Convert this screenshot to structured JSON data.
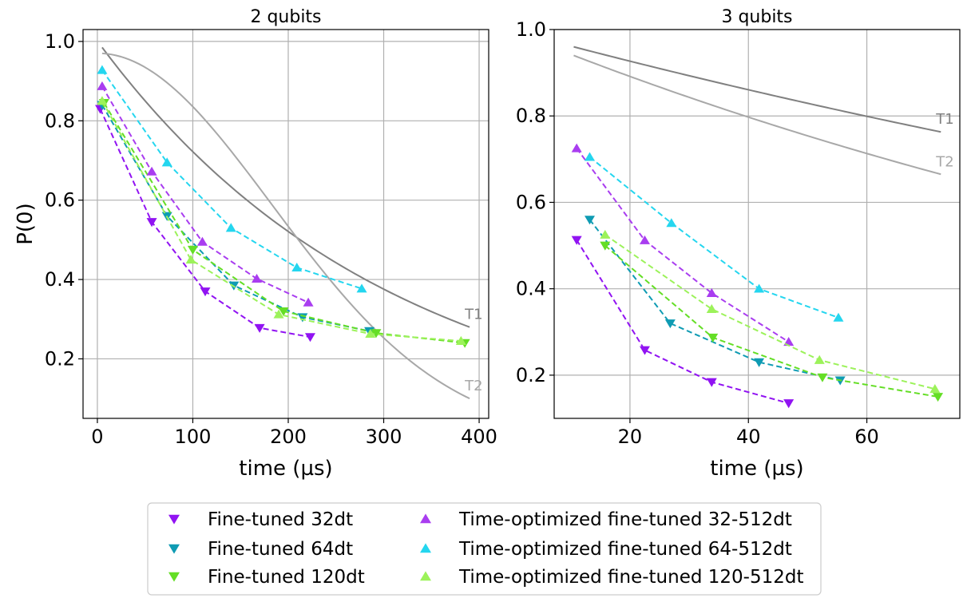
{
  "chart_data": [
    {
      "type": "line",
      "title": "2 qubits",
      "xlabel": "time (µs)",
      "ylabel": "P(0)",
      "xlim": [
        -15,
        410
      ],
      "ylim": [
        0.05,
        1.03
      ],
      "xticks": [
        0,
        100,
        200,
        300,
        400
      ],
      "xtick_labels": [
        "0",
        "100",
        "200",
        "300",
        "400"
      ],
      "yticks": [
        0.2,
        0.4,
        0.6,
        0.8,
        1.0
      ],
      "ytick_labels": [
        "0.2",
        "0.4",
        "0.6",
        "0.8",
        "1.0"
      ],
      "grid": true,
      "reference_curves": [
        {
          "name": "T1",
          "label": "T1",
          "color": "#808080",
          "x0": 5,
          "y0": 0.985,
          "x1": 390,
          "y1": 0.28,
          "shape": "exp"
        },
        {
          "name": "T2",
          "label": "T2",
          "color": "#a8a8a8",
          "x0": 5,
          "y0": 0.97,
          "x1": 390,
          "y1": 0.1,
          "shape": "gauss"
        }
      ],
      "series": [
        {
          "name": "Fine-tuned 32dt",
          "marker": "down",
          "x": [
            3,
            57,
            113,
            170,
            223
          ],
          "y": [
            0.83,
            0.545,
            0.37,
            0.278,
            0.255
          ]
        },
        {
          "name": "Fine-tuned 64dt",
          "marker": "down",
          "x": [
            5,
            73,
            143,
            215,
            285
          ],
          "y": [
            0.84,
            0.56,
            0.385,
            0.305,
            0.27
          ]
        },
        {
          "name": "Fine-tuned 120dt",
          "marker": "down",
          "x": [
            7,
            100,
            195,
            292,
            385
          ],
          "y": [
            0.845,
            0.475,
            0.32,
            0.265,
            0.24
          ]
        },
        {
          "name": "Time-optimized fine-tuned 32-512dt",
          "marker": "up",
          "x": [
            5,
            57,
            110,
            167,
            221
          ],
          "y": [
            0.887,
            0.672,
            0.495,
            0.402,
            0.342
          ]
        },
        {
          "name": "Time-optimized fine-tuned 64-512dt",
          "marker": "up",
          "x": [
            5,
            73,
            140,
            209,
            277
          ],
          "y": [
            0.928,
            0.695,
            0.53,
            0.43,
            0.377
          ]
        },
        {
          "name": "Time-optimized fine-tuned 120-512dt",
          "marker": "up",
          "x": [
            5,
            98,
            190,
            286,
            381
          ],
          "y": [
            0.85,
            0.45,
            0.312,
            0.263,
            0.245
          ]
        }
      ]
    },
    {
      "type": "line",
      "title": "3 qubits",
      "xlabel": "time (µs)",
      "ylabel": "",
      "xlim": [
        7.2,
        75.7
      ],
      "ylim": [
        0.1,
        1.0
      ],
      "xticks": [
        20,
        40,
        60
      ],
      "xtick_labels": [
        "20",
        "40",
        "60"
      ],
      "yticks": [
        0.2,
        0.4,
        0.6,
        0.8,
        1.0
      ],
      "ytick_labels": [
        "0.2",
        "0.4",
        "0.6",
        "0.8",
        "1.0"
      ],
      "grid": true,
      "reference_curves": [
        {
          "name": "T1",
          "label": "T1",
          "color": "#808080",
          "x0": 10.5,
          "y0": 0.96,
          "x1": 72.5,
          "y1": 0.763,
          "shape": "exp"
        },
        {
          "name": "T2",
          "label": "T2",
          "color": "#a8a8a8",
          "x0": 10.5,
          "y0": 0.94,
          "x1": 72.5,
          "y1": 0.665,
          "shape": "exp"
        }
      ],
      "series": [
        {
          "name": "Fine-tuned 32dt",
          "marker": "down",
          "x": [
            11,
            22.5,
            33.8,
            46.8
          ],
          "y": [
            0.513,
            0.258,
            0.184,
            0.135
          ]
        },
        {
          "name": "Fine-tuned 64dt",
          "marker": "down",
          "x": [
            13.2,
            26.8,
            41.8,
            55.5
          ],
          "y": [
            0.56,
            0.32,
            0.23,
            0.188
          ]
        },
        {
          "name": "Fine-tuned 120dt",
          "marker": "down",
          "x": [
            15.8,
            34,
            52.5,
            72
          ],
          "y": [
            0.5,
            0.287,
            0.195,
            0.15
          ]
        },
        {
          "name": "Time-optimized fine-tuned 32-512dt",
          "marker": "up",
          "x": [
            11,
            22.5,
            33.8,
            46.8
          ],
          "y": [
            0.725,
            0.512,
            0.39,
            0.277
          ]
        },
        {
          "name": "Time-optimized fine-tuned 64-512dt",
          "marker": "up",
          "x": [
            13.2,
            27,
            41.8,
            55.2
          ],
          "y": [
            0.705,
            0.552,
            0.4,
            0.333
          ]
        },
        {
          "name": "Time-optimized fine-tuned 120-512dt",
          "marker": "up",
          "x": [
            15.8,
            33.8,
            52,
            71.5
          ],
          "y": [
            0.525,
            0.353,
            0.235,
            0.168
          ]
        }
      ]
    }
  ],
  "legend": {
    "placement": "bottom-center",
    "entries": [
      {
        "label": "Fine-tuned 32dt",
        "marker": "down",
        "color": "#9113f2"
      },
      {
        "label": "Fine-tuned 64dt",
        "marker": "down",
        "color": "#0f9bb3"
      },
      {
        "label": "Fine-tuned 120dt",
        "marker": "down",
        "color": "#64de25"
      },
      {
        "label": "Time-optimized fine-tuned 32-512dt",
        "marker": "up",
        "color": "#a93df0"
      },
      {
        "label": "Time-optimized fine-tuned 64-512dt",
        "marker": "up",
        "color": "#24d6ef"
      },
      {
        "label": "Time-optimized fine-tuned 120-512dt",
        "marker": "up",
        "color": "#9cf25a"
      }
    ]
  },
  "colors": {
    "Fine-tuned 32dt": "#9113f2",
    "Fine-tuned 64dt": "#0f9bb3",
    "Fine-tuned 120dt": "#64de25",
    "Time-optimized fine-tuned 32-512dt": "#a93df0",
    "Time-optimized fine-tuned 64-512dt": "#24d6ef",
    "Time-optimized fine-tuned 120-512dt": "#9cf25a"
  }
}
